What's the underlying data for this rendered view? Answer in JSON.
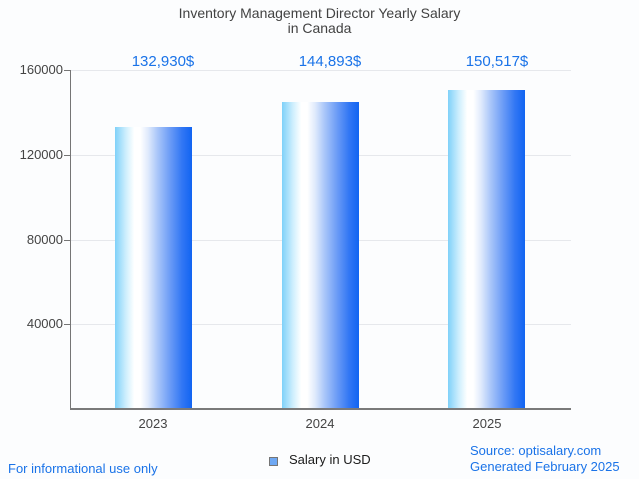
{
  "title": {
    "line1": "Inventory Management Director Yearly Salary",
    "line2": "in Canada"
  },
  "chart_data": {
    "type": "bar",
    "categories": [
      "2023",
      "2024",
      "2025"
    ],
    "series": [
      {
        "name": "Salary in USD",
        "values": [
          132930,
          144893,
          150517
        ]
      }
    ],
    "annotations": [
      "132,930$",
      "144,893$",
      "150,517$"
    ],
    "title": "Inventory Management Director Yearly Salary in Canada",
    "xlabel": "",
    "ylabel": "",
    "ylim": [
      0,
      160000
    ],
    "yticks": [
      40000,
      80000,
      120000,
      160000
    ],
    "grid": true,
    "legend_position": "bottom",
    "annotation_color": "#1a73e8",
    "bar_gradient": [
      "#7fd1f9",
      "#ffffff",
      "#1164f2"
    ],
    "gridline_color": "#e6e8ec",
    "axis_color": "#757575"
  },
  "legend": {
    "label": "Salary in USD",
    "swatch_fill": "#6fa8f3",
    "swatch_border": "#757575"
  },
  "footer": {
    "left": "For informational use only",
    "source": "Source: optisalary.com",
    "generated": "Generated February 2025",
    "link_color": "#1a73e8"
  }
}
